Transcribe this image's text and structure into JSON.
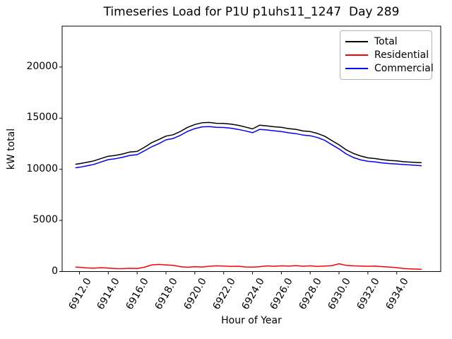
{
  "chart_data": {
    "type": "line",
    "title": "Timeseries Load for P1U p1uhs11_1247  Day 289",
    "xlabel": "Hour of Year",
    "ylabel": "kW total",
    "xlim": [
      6910.8,
      6937.05
    ],
    "ylim": [
      0,
      24000
    ],
    "grid": false,
    "legend_position": "upper right",
    "axis_color": "#000000",
    "x_ticks": {
      "values": [
        6912,
        6914,
        6916,
        6918,
        6920,
        6922,
        6924,
        6926,
        6928,
        6930,
        6932,
        6934
      ],
      "labels": [
        "6912.0",
        "6914.0",
        "6916.0",
        "6918.0",
        "6920.0",
        "6922.0",
        "6924.0",
        "6926.0",
        "6928.0",
        "6930.0",
        "6932.0",
        "6934.0"
      ]
    },
    "y_ticks": {
      "values": [
        0,
        5000,
        10000,
        15000,
        20000
      ],
      "labels": [
        "0",
        "5000",
        "10000",
        "15000",
        "20000"
      ]
    },
    "x": [
      6911.75,
      6912.0,
      6912.5,
      6913.0,
      6913.5,
      6914.0,
      6914.5,
      6915.0,
      6915.5,
      6916.0,
      6916.5,
      6917.0,
      6917.5,
      6918.0,
      6918.5,
      6919.0,
      6919.5,
      6920.0,
      6920.5,
      6921.0,
      6921.5,
      6922.0,
      6922.5,
      6923.0,
      6923.5,
      6924.0,
      6924.5,
      6925.0,
      6925.5,
      6926.0,
      6926.5,
      6927.0,
      6927.5,
      6928.0,
      6928.5,
      6929.0,
      6929.5,
      6930.0,
      6930.5,
      6931.0,
      6931.5,
      6932.0,
      6932.5,
      6933.0,
      6933.5,
      6934.0,
      6934.5,
      6935.0,
      6935.7
    ],
    "series": [
      {
        "name": "Total",
        "color": "#000000",
        "values": [
          10500,
          10550,
          10680,
          10820,
          11060,
          11280,
          11360,
          11500,
          11690,
          11750,
          12150,
          12600,
          12910,
          13250,
          13380,
          13700,
          14100,
          14380,
          14550,
          14580,
          14500,
          14490,
          14420,
          14300,
          14140,
          13950,
          14310,
          14250,
          14160,
          14100,
          13980,
          13910,
          13750,
          13690,
          13510,
          13240,
          12810,
          12400,
          11900,
          11550,
          11300,
          11120,
          11050,
          10950,
          10870,
          10820,
          10740,
          10700,
          10640
        ]
      },
      {
        "name": "Residential",
        "color": "#ff0000",
        "values": [
          430,
          420,
          350,
          330,
          380,
          340,
          300,
          280,
          320,
          300,
          420,
          650,
          700,
          650,
          600,
          480,
          420,
          480,
          440,
          520,
          560,
          540,
          500,
          520,
          450,
          430,
          480,
          550,
          520,
          560,
          540,
          580,
          520,
          560,
          500,
          540,
          580,
          760,
          600,
          560,
          540,
          520,
          540,
          480,
          440,
          380,
          300,
          260,
          230
        ]
      },
      {
        "name": "Commercial",
        "color": "#0000ff",
        "values": [
          10150,
          10200,
          10330,
          10480,
          10720,
          10950,
          11040,
          11180,
          11360,
          11430,
          11800,
          12200,
          12510,
          12880,
          13010,
          13320,
          13710,
          13980,
          14150,
          14180,
          14100,
          14090,
          14020,
          13900,
          13760,
          13580,
          13900,
          13850,
          13760,
          13690,
          13570,
          13490,
          13350,
          13280,
          13110,
          12840,
          12410,
          11990,
          11500,
          11150,
          10920,
          10780,
          10720,
          10620,
          10560,
          10520,
          10460,
          10420,
          10350
        ]
      }
    ]
  }
}
